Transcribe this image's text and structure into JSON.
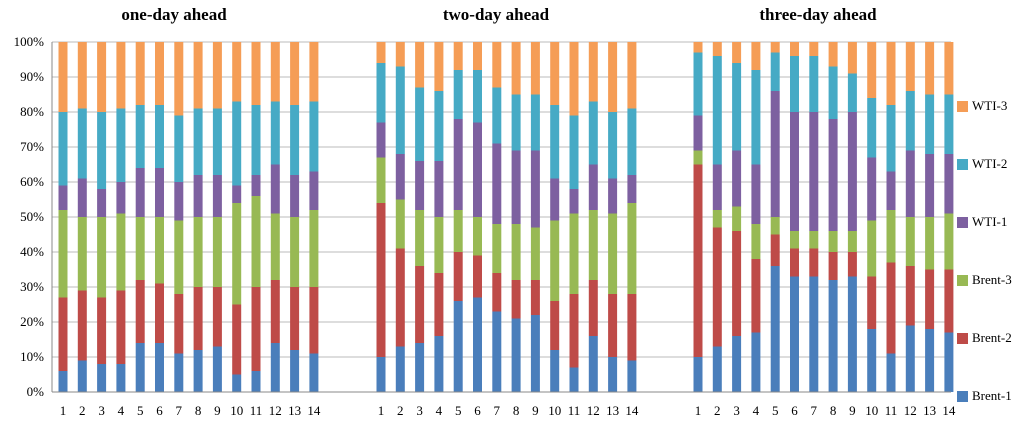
{
  "chart_data": {
    "type": "bar",
    "stacked": true,
    "normalized_percent": true,
    "ylim": [
      0,
      100
    ],
    "y_ticks": [
      "0%",
      "10%",
      "20%",
      "30%",
      "40%",
      "50%",
      "60%",
      "70%",
      "80%",
      "90%",
      "100%"
    ],
    "grid": "horizontal",
    "legend_placement": "right",
    "colors": {
      "Brent-1": "#4a7ebb",
      "Brent-2": "#be4b48",
      "Brent-3": "#98b954",
      "WTI-1": "#7d60a0",
      "WTI-2": "#46aac5",
      "WTI-3": "#f59d56"
    },
    "legend": [
      "WTI-3",
      "WTI-2",
      "WTI-1",
      "Brent-3",
      "Brent-2",
      "Brent-1"
    ],
    "series_order": [
      "Brent-1",
      "Brent-2",
      "Brent-3",
      "WTI-1",
      "WTI-2",
      "WTI-3"
    ],
    "panels": [
      {
        "title": "one-day ahead",
        "categories": [
          "1",
          "2",
          "3",
          "4",
          "5",
          "6",
          "7",
          "8",
          "9",
          "10",
          "11",
          "12",
          "13",
          "14"
        ],
        "series": [
          {
            "name": "Brent-1",
            "values": [
              6,
              9,
              8,
              8,
              14,
              14,
              11,
              12,
              13,
              5,
              6,
              14,
              12,
              11
            ]
          },
          {
            "name": "Brent-2",
            "values": [
              21,
              20,
              19,
              21,
              18,
              17,
              17,
              18,
              17,
              20,
              24,
              18,
              18,
              19
            ]
          },
          {
            "name": "Brent-3",
            "values": [
              25,
              21,
              23,
              22,
              18,
              19,
              21,
              20,
              20,
              29,
              26,
              19,
              20,
              22
            ]
          },
          {
            "name": "WTI-1",
            "values": [
              7,
              11,
              8,
              9,
              14,
              14,
              11,
              12,
              12,
              5,
              6,
              14,
              12,
              11
            ]
          },
          {
            "name": "WTI-2",
            "values": [
              21,
              20,
              22,
              21,
              18,
              18,
              19,
              19,
              19,
              24,
              20,
              18,
              20,
              20
            ]
          },
          {
            "name": "WTI-3",
            "values": [
              20,
              19,
              20,
              19,
              18,
              18,
              21,
              19,
              19,
              17,
              18,
              17,
              18,
              17
            ]
          }
        ]
      },
      {
        "title": "two-day ahead",
        "categories": [
          "1",
          "2",
          "3",
          "4",
          "5",
          "6",
          "7",
          "8",
          "9",
          "10",
          "11",
          "12",
          "13",
          "14"
        ],
        "series": [
          {
            "name": "Brent-1",
            "values": [
              10,
              13,
              14,
              16,
              26,
              27,
              23,
              21,
              22,
              12,
              7,
              16,
              10,
              9
            ]
          },
          {
            "name": "Brent-2",
            "values": [
              44,
              28,
              22,
              18,
              14,
              12,
              11,
              11,
              10,
              14,
              21,
              16,
              18,
              19
            ]
          },
          {
            "name": "Brent-3",
            "values": [
              13,
              14,
              16,
              16,
              12,
              11,
              14,
              16,
              15,
              23,
              23,
              20,
              23,
              26
            ]
          },
          {
            "name": "WTI-1",
            "values": [
              10,
              13,
              14,
              16,
              26,
              27,
              23,
              21,
              22,
              12,
              7,
              13,
              10,
              8
            ]
          },
          {
            "name": "WTI-2",
            "values": [
              17,
              25,
              21,
              20,
              14,
              15,
              16,
              16,
              16,
              21,
              21,
              18,
              19,
              19
            ]
          },
          {
            "name": "WTI-3",
            "values": [
              6,
              7,
              13,
              14,
              8,
              8,
              13,
              15,
              15,
              18,
              21,
              17,
              20,
              19
            ]
          }
        ]
      },
      {
        "title": "three-day ahead",
        "categories": [
          "1",
          "2",
          "3",
          "4",
          "5",
          "6",
          "7",
          "8",
          "9",
          "10",
          "11",
          "12",
          "13",
          "14"
        ],
        "series": [
          {
            "name": "Brent-1",
            "values": [
              10,
              13,
              16,
              17,
              36,
              33,
              33,
              32,
              33,
              18,
              11,
              19,
              18,
              17
            ]
          },
          {
            "name": "Brent-2",
            "values": [
              55,
              34,
              30,
              21,
              9,
              8,
              8,
              8,
              7,
              15,
              26,
              17,
              17,
              18
            ]
          },
          {
            "name": "Brent-3",
            "values": [
              4,
              5,
              7,
              10,
              5,
              5,
              5,
              6,
              6,
              16,
              15,
              14,
              15,
              16
            ]
          },
          {
            "name": "WTI-1",
            "values": [
              10,
              13,
              16,
              17,
              36,
              34,
              34,
              32,
              34,
              18,
              11,
              19,
              18,
              17
            ]
          },
          {
            "name": "WTI-2",
            "values": [
              18,
              31,
              25,
              27,
              11,
              16,
              16,
              15,
              11,
              17,
              19,
              17,
              17,
              17
            ]
          },
          {
            "name": "WTI-3",
            "values": [
              3,
              4,
              6,
              8,
              3,
              4,
              4,
              7,
              9,
              16,
              18,
              14,
              15,
              15
            ]
          }
        ]
      }
    ]
  }
}
